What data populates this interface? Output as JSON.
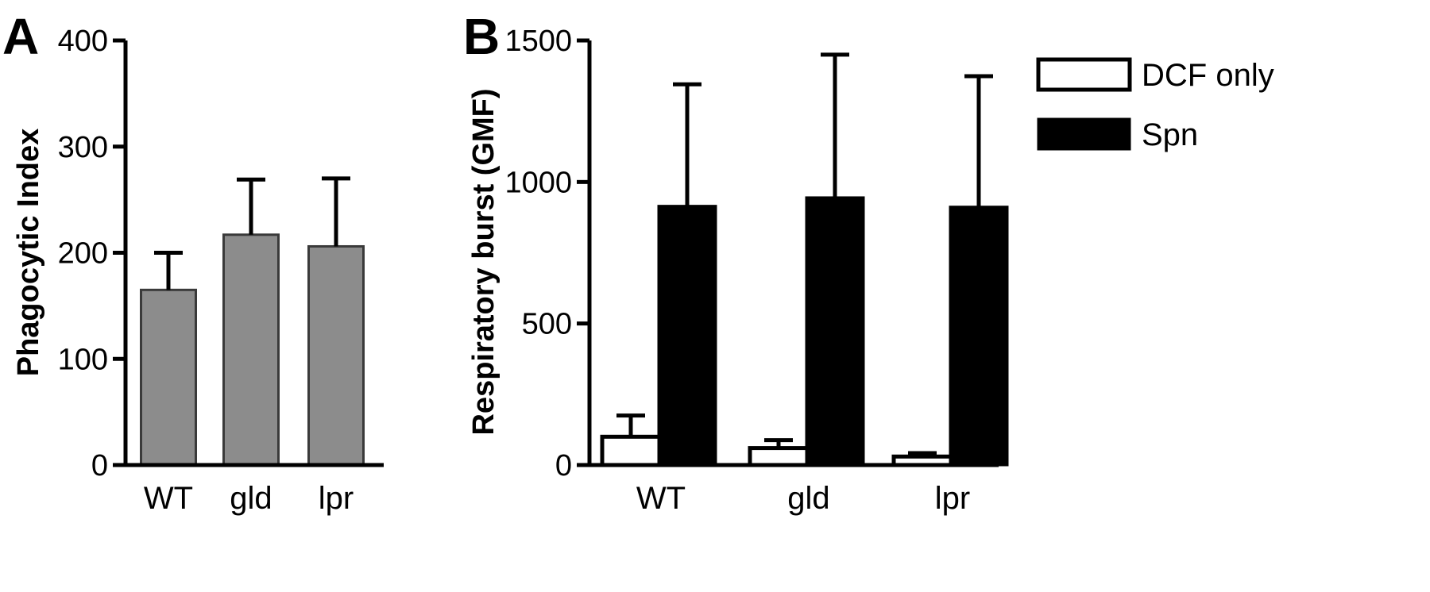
{
  "chart_data": [
    {
      "panel": "A",
      "type": "bar",
      "ylabel": "Phagocytic Index",
      "xlabel": "",
      "ylim": [
        0,
        400
      ],
      "yticks": [
        0,
        100,
        200,
        300,
        400
      ],
      "categories": [
        "WT",
        "gld",
        "lpr"
      ],
      "series": [
        {
          "values": [
            165,
            217,
            206
          ],
          "errors": [
            35,
            52,
            64
          ],
          "color": "#8c8c8c"
        }
      ]
    },
    {
      "panel": "B",
      "type": "bar",
      "ylabel": "Respiratory burst (GMF)",
      "xlabel": "",
      "ylim": [
        0,
        1500
      ],
      "yticks": [
        0,
        500,
        1000,
        1500
      ],
      "categories": [
        "WT",
        "gld",
        "lpr"
      ],
      "legend_position": "top-right",
      "series": [
        {
          "name": "DCF only",
          "values": [
            100,
            60,
            30
          ],
          "errors": [
            75,
            28,
            12
          ],
          "color": "#ffffff"
        },
        {
          "name": "Spn",
          "values": [
            915,
            945,
            912
          ],
          "errors": [
            430,
            505,
            462
          ],
          "color": "#000000"
        }
      ]
    }
  ]
}
